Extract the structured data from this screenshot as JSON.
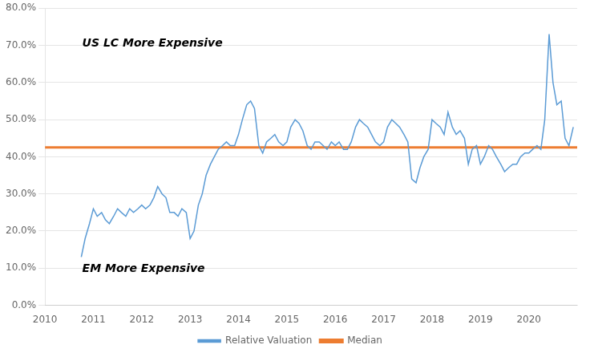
{
  "chart_data": {
    "type": "line",
    "series": [
      {
        "name": "Relative Valuation",
        "color": "#5B9BD5",
        "x": [
          2010.75,
          2010.83,
          2010.92,
          2011.0,
          2011.08,
          2011.17,
          2011.25,
          2011.33,
          2011.42,
          2011.5,
          2011.58,
          2011.67,
          2011.75,
          2011.83,
          2011.92,
          2012.0,
          2012.08,
          2012.17,
          2012.25,
          2012.33,
          2012.42,
          2012.5,
          2012.58,
          2012.67,
          2012.75,
          2012.83,
          2012.92,
          2013.0,
          2013.08,
          2013.17,
          2013.25,
          2013.33,
          2013.42,
          2013.5,
          2013.58,
          2013.67,
          2013.75,
          2013.83,
          2013.92,
          2014.0,
          2014.08,
          2014.17,
          2014.25,
          2014.33,
          2014.42,
          2014.5,
          2014.58,
          2014.67,
          2014.75,
          2014.83,
          2014.92,
          2015.0,
          2015.08,
          2015.17,
          2015.25,
          2015.33,
          2015.42,
          2015.5,
          2015.58,
          2015.67,
          2015.75,
          2015.83,
          2015.92,
          2016.0,
          2016.08,
          2016.17,
          2016.25,
          2016.33,
          2016.42,
          2016.5,
          2016.58,
          2016.67,
          2016.75,
          2016.83,
          2016.92,
          2017.0,
          2017.08,
          2017.17,
          2017.25,
          2017.33,
          2017.42,
          2017.5,
          2017.58,
          2017.67,
          2017.75,
          2017.83,
          2017.92,
          2018.0,
          2018.08,
          2018.17,
          2018.25,
          2018.33,
          2018.42,
          2018.5,
          2018.58,
          2018.67,
          2018.75,
          2018.83,
          2018.92,
          2019.0,
          2019.08,
          2019.17,
          2019.25,
          2019.33,
          2019.42,
          2019.5,
          2019.58,
          2019.67,
          2019.75,
          2019.83,
          2019.92,
          2020.0,
          2020.08,
          2020.17,
          2020.25,
          2020.33,
          2020.42,
          2020.5,
          2020.58,
          2020.67,
          2020.75,
          2020.83,
          2020.92
        ],
        "values": [
          0.13,
          0.18,
          0.22,
          0.26,
          0.24,
          0.25,
          0.23,
          0.22,
          0.24,
          0.26,
          0.25,
          0.24,
          0.26,
          0.25,
          0.26,
          0.27,
          0.26,
          0.27,
          0.29,
          0.32,
          0.3,
          0.29,
          0.25,
          0.25,
          0.24,
          0.26,
          0.25,
          0.18,
          0.2,
          0.27,
          0.3,
          0.35,
          0.38,
          0.4,
          0.42,
          0.43,
          0.44,
          0.43,
          0.43,
          0.46,
          0.5,
          0.54,
          0.55,
          0.53,
          0.43,
          0.41,
          0.44,
          0.45,
          0.46,
          0.44,
          0.43,
          0.44,
          0.48,
          0.5,
          0.49,
          0.47,
          0.43,
          0.42,
          0.44,
          0.44,
          0.43,
          0.42,
          0.44,
          0.43,
          0.44,
          0.42,
          0.42,
          0.44,
          0.48,
          0.5,
          0.49,
          0.48,
          0.46,
          0.44,
          0.43,
          0.44,
          0.48,
          0.5,
          0.49,
          0.48,
          0.46,
          0.44,
          0.34,
          0.33,
          0.37,
          0.4,
          0.42,
          0.5,
          0.49,
          0.48,
          0.46,
          0.52,
          0.48,
          0.46,
          0.47,
          0.45,
          0.38,
          0.42,
          0.43,
          0.38,
          0.4,
          0.43,
          0.42,
          0.4,
          0.38,
          0.36,
          0.37,
          0.38,
          0.38,
          0.4,
          0.41,
          0.41,
          0.42,
          0.43,
          0.42,
          0.5,
          0.73,
          0.6,
          0.54,
          0.55,
          0.45,
          0.43,
          0.48
        ]
      },
      {
        "name": "Median",
        "color": "#ED7D31",
        "x": [
          2010.0,
          2021.0
        ],
        "values": [
          0.425,
          0.425
        ]
      }
    ],
    "xlim": [
      2010.0,
      2021.0
    ],
    "xticks": [
      2010,
      2011,
      2012,
      2013,
      2014,
      2015,
      2016,
      2017,
      2018,
      2019,
      2020
    ],
    "ylim": [
      0.0,
      0.8
    ],
    "yticks": [
      {
        "value": 0.0,
        "label": "0.0%"
      },
      {
        "value": 0.1,
        "label": "10.0%"
      },
      {
        "value": 0.2,
        "label": "20.0%"
      },
      {
        "value": 0.3,
        "label": "30.0%"
      },
      {
        "value": 0.4,
        "label": "40.0%"
      },
      {
        "value": 0.5,
        "label": "50.0%"
      },
      {
        "value": 0.6,
        "label": "60.0%"
      },
      {
        "value": 0.7,
        "label": "70.0%"
      },
      {
        "value": 0.8,
        "label": "80.0%"
      }
    ],
    "annotations": [
      "US LC More Expensive",
      "EM More Expensive"
    ],
    "grid": "y",
    "legend": "bottom"
  }
}
